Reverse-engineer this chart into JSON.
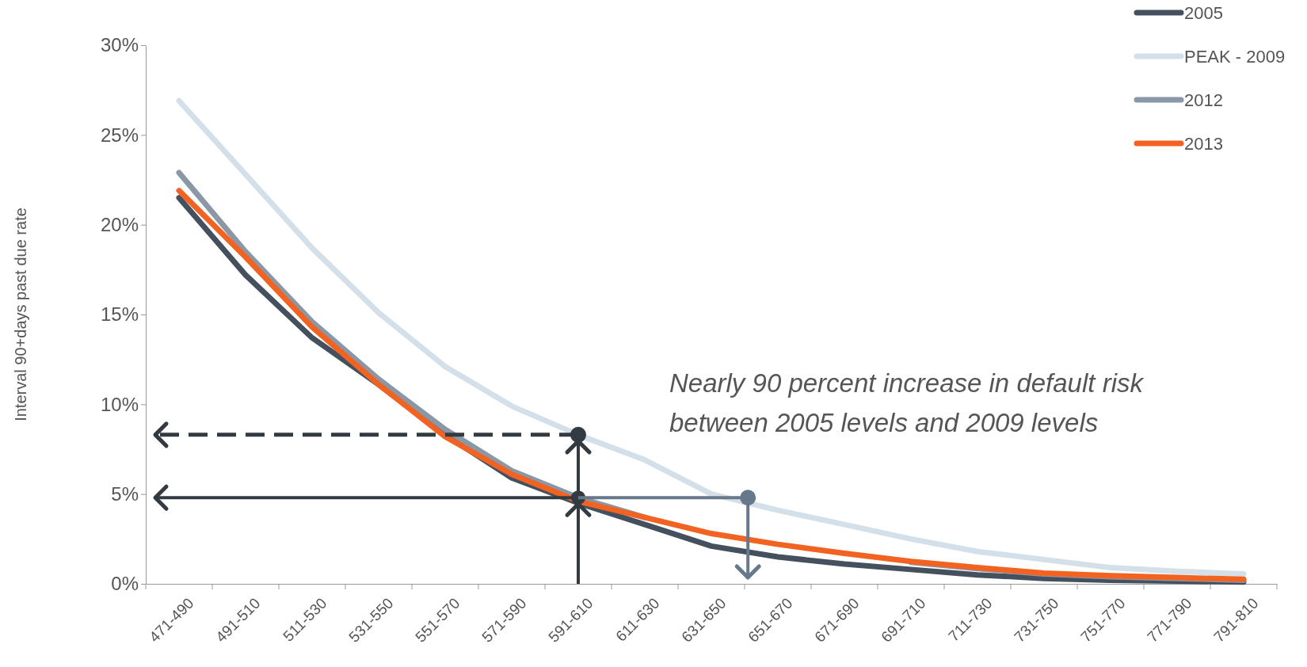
{
  "chart_data": {
    "type": "line",
    "ylabel": "Interval 90+days past due rate",
    "categories": [
      "471-490",
      "491-510",
      "511-530",
      "531-550",
      "551-570",
      "571-590",
      "591-610",
      "611-630",
      "631-650",
      "651-670",
      "671-690",
      "691-710",
      "711-730",
      "731-750",
      "751-770",
      "771-790",
      "791-810"
    ],
    "series": [
      {
        "name": "2005",
        "color": "#44505e",
        "values": [
          21.5,
          17.2,
          13.7,
          11.1,
          8.3,
          5.9,
          4.5,
          3.3,
          2.1,
          1.5,
          1.1,
          0.8,
          0.5,
          0.3,
          0.2,
          0.15,
          0.1
        ]
      },
      {
        "name": "PEAK - 2009",
        "color": "#d3e0ea",
        "values": [
          26.9,
          22.8,
          18.7,
          15.1,
          12.1,
          9.9,
          8.3,
          6.9,
          5.0,
          4.1,
          3.3,
          2.5,
          1.8,
          1.35,
          0.9,
          0.7,
          0.55
        ]
      },
      {
        "name": "2012",
        "color": "#8a97a6",
        "values": [
          22.9,
          18.5,
          14.6,
          11.4,
          8.6,
          6.3,
          4.8,
          3.7,
          null,
          null,
          null,
          1.2,
          0.85,
          0.55,
          0.4,
          0.3,
          0.2
        ]
      },
      {
        "name": "2013",
        "color": "#f26322",
        "values": [
          21.9,
          18.2,
          14.3,
          11.1,
          8.2,
          6.1,
          4.6,
          3.7,
          2.8,
          2.2,
          1.7,
          1.25,
          0.9,
          0.6,
          0.45,
          0.35,
          0.25
        ]
      }
    ],
    "ylim": [
      0,
      30
    ],
    "yticks": [
      {
        "value": 0,
        "label": "0%"
      },
      {
        "value": 5,
        "label": "5%"
      },
      {
        "value": 10,
        "label": "10%"
      },
      {
        "value": 15,
        "label": "15%"
      },
      {
        "value": 20,
        "label": "20%"
      },
      {
        "value": 25,
        "label": "25%"
      },
      {
        "value": 30,
        "label": "30%"
      }
    ],
    "grid": false,
    "legend": "top right",
    "marker": "none",
    "line_style": "solid",
    "annotations": [
      "Nearly 90 percent increase in default risk between 2005 levels and 2009 levels"
    ]
  }
}
